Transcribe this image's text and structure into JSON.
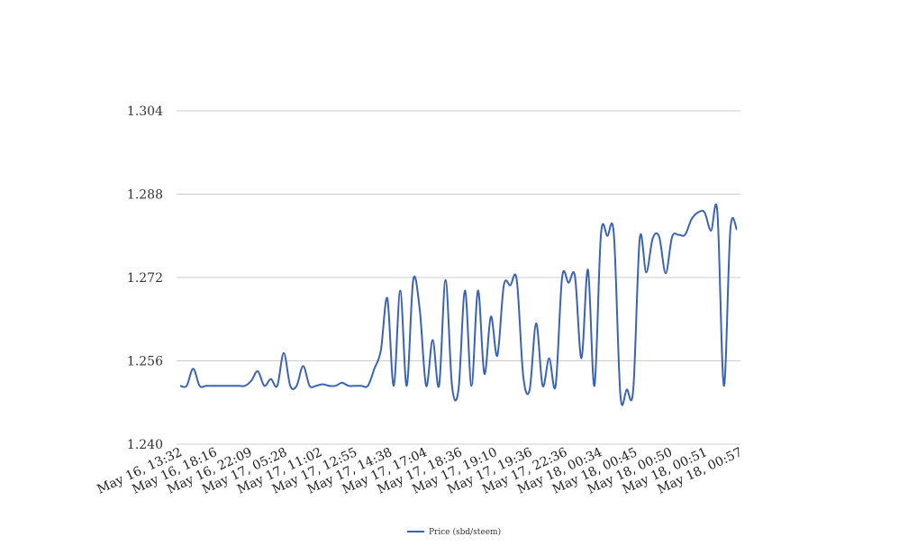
{
  "chart_data": {
    "type": "line",
    "title": "",
    "xlabel": "",
    "ylabel": "",
    "ylim": [
      1.24,
      1.304
    ],
    "y_ticks": [
      "1.240",
      "1.256",
      "1.272",
      "1.288",
      "1.304"
    ],
    "x_tick_labels": [
      "May 16, 13:32",
      "May 16, 18:16",
      "May 16, 22:09",
      "May 17, 05:28",
      "May 17, 11:02",
      "May 17, 12:55",
      "May 17, 14:38",
      "May 17, 17:04",
      "May 17, 18:36",
      "May 17, 19:10",
      "May 17, 19:36",
      "May 17, 22:36",
      "May 18, 00:34",
      "May 18, 00:45",
      "May 18, 00:50",
      "May 18, 00:51",
      "May 18, 00:57"
    ],
    "grid": true,
    "legend_position": "bottom-center",
    "series": [
      {
        "name": "Price (sbd/steem)",
        "color": "#3b63b5",
        "values": [
          1.2512,
          1.2512,
          1.2545,
          1.2512,
          1.2512,
          1.2512,
          1.2512,
          1.2512,
          1.2512,
          1.2512,
          1.2512,
          1.2522,
          1.254,
          1.2512,
          1.2525,
          1.2512,
          1.2575,
          1.2512,
          1.2512,
          1.255,
          1.2512,
          1.2512,
          1.2515,
          1.2512,
          1.2512,
          1.2518,
          1.2512,
          1.2512,
          1.2512,
          1.2512,
          1.2545,
          1.258,
          1.268,
          1.2512,
          1.2695,
          1.2512,
          1.2715,
          1.266,
          1.2512,
          1.26,
          1.2512,
          1.2715,
          1.2512,
          1.2505,
          1.2695,
          1.2512,
          1.2695,
          1.2535,
          1.2645,
          1.257,
          1.2705,
          1.2705,
          1.2715,
          1.253,
          1.2505,
          1.2632,
          1.2512,
          1.2565,
          1.2512,
          1.272,
          1.271,
          1.2722,
          1.2565,
          1.2735,
          1.2512,
          1.2802,
          1.28,
          1.2802,
          1.2495,
          1.2505,
          1.2505,
          1.2795,
          1.273,
          1.2795,
          1.2798,
          1.2728,
          1.2798,
          1.2802,
          1.2802,
          1.2832,
          1.2845,
          1.2845,
          1.281,
          1.2845,
          1.2512,
          1.2812,
          1.2812
        ]
      }
    ]
  },
  "legend": {
    "label": "Price (sbd/steem)"
  }
}
